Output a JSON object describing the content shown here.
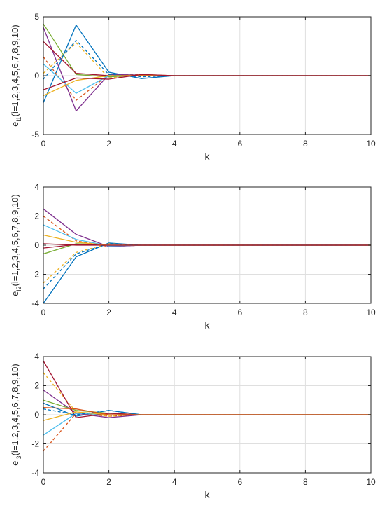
{
  "chart_data": [
    {
      "type": "line",
      "xlabel": "k",
      "ylabel": {
        "main": "e",
        "sub": "i1",
        "suffix": "(i=1,2,3,4,5,6,7,8,9,10)"
      },
      "xlim": [
        0,
        10
      ],
      "ylim": [
        -5,
        5
      ],
      "xticks": [
        0,
        2,
        4,
        6,
        8,
        10
      ],
      "yticks": [
        -5,
        0,
        5
      ],
      "grid": true,
      "x": [
        0,
        1,
        2,
        3,
        4,
        5,
        6,
        7,
        8,
        9,
        10
      ],
      "series": [
        {
          "color": "#0072BD",
          "dash": false,
          "values": [
            -2.3,
            4.3,
            0.3,
            -0.25,
            0,
            0,
            0,
            0,
            0,
            0,
            0
          ]
        },
        {
          "color": "#D95319",
          "dash": true,
          "values": [
            1.6,
            -2.1,
            0.1,
            0.1,
            0,
            0,
            0,
            0,
            0,
            0,
            0
          ]
        },
        {
          "color": "#EDB120",
          "dash": true,
          "values": [
            0.2,
            2.8,
            -0.2,
            0.1,
            0,
            0,
            0,
            0,
            0,
            0,
            0
          ]
        },
        {
          "color": "#7E2F8E",
          "dash": false,
          "values": [
            4.1,
            -3.0,
            0.1,
            0.05,
            0,
            0,
            0,
            0,
            0,
            0,
            0
          ]
        },
        {
          "color": "#77AC30",
          "dash": false,
          "values": [
            4.4,
            0.1,
            -0.1,
            0.05,
            0,
            0,
            0,
            0,
            0,
            0,
            0
          ]
        },
        {
          "color": "#4DBEEE",
          "dash": false,
          "values": [
            1.0,
            -1.5,
            0.0,
            0.05,
            0,
            0,
            0,
            0,
            0,
            0,
            0
          ]
        },
        {
          "color": "#A2142F",
          "dash": false,
          "values": [
            2.9,
            0.2,
            0.0,
            0.05,
            0,
            0,
            0,
            0,
            0,
            0,
            0
          ]
        },
        {
          "color": "#0072BD",
          "dash": true,
          "values": [
            -0.3,
            3.0,
            0.1,
            -0.1,
            0,
            0,
            0,
            0,
            0,
            0,
            0
          ]
        },
        {
          "color": "#EDB120",
          "dash": false,
          "values": [
            -1.7,
            -0.4,
            0.0,
            0.0,
            0,
            0,
            0,
            0,
            0,
            0,
            0
          ]
        },
        {
          "color": "#A2142F",
          "dash": false,
          "values": [
            -1.2,
            -0.2,
            -0.3,
            0.1,
            0,
            0,
            0,
            0,
            0,
            0,
            0
          ]
        }
      ]
    },
    {
      "type": "line",
      "xlabel": "k",
      "ylabel": {
        "main": "e",
        "sub": "i2",
        "suffix": "(i=1,2,3,4,5,6,7,8,9,10)"
      },
      "xlim": [
        0,
        10
      ],
      "ylim": [
        -4,
        4
      ],
      "xticks": [
        0,
        2,
        4,
        6,
        8,
        10
      ],
      "yticks": [
        -4,
        -2,
        0,
        2,
        4
      ],
      "grid": true,
      "x": [
        0,
        1,
        2,
        3,
        4,
        5,
        6,
        7,
        8,
        9,
        10
      ],
      "series": [
        {
          "color": "#0072BD",
          "dash": false,
          "values": [
            -4.0,
            -0.8,
            0.15,
            0.0,
            0,
            0,
            0,
            0,
            0,
            0,
            0
          ]
        },
        {
          "color": "#D95319",
          "dash": true,
          "values": [
            2.0,
            0.3,
            -0.1,
            0.0,
            0,
            0,
            0,
            0,
            0,
            0,
            0
          ]
        },
        {
          "color": "#EDB120",
          "dash": true,
          "values": [
            -2.6,
            -0.5,
            0.1,
            0.0,
            0,
            0,
            0,
            0,
            0,
            0,
            0
          ]
        },
        {
          "color": "#7E2F8E",
          "dash": false,
          "values": [
            2.5,
            0.75,
            -0.1,
            0.0,
            0,
            0,
            0,
            0,
            0,
            0,
            0
          ]
        },
        {
          "color": "#77AC30",
          "dash": false,
          "values": [
            -0.6,
            0.1,
            0.0,
            0.0,
            0,
            0,
            0,
            0,
            0,
            0,
            0
          ]
        },
        {
          "color": "#4DBEEE",
          "dash": false,
          "values": [
            1.4,
            0.4,
            -0.05,
            0.0,
            0,
            0,
            0,
            0,
            0,
            0,
            0
          ]
        },
        {
          "color": "#A2142F",
          "dash": false,
          "values": [
            -0.2,
            0.05,
            0.0,
            0.0,
            0,
            0,
            0,
            0,
            0,
            0,
            0
          ]
        },
        {
          "color": "#0072BD",
          "dash": true,
          "values": [
            -3.0,
            -0.6,
            0.1,
            0.0,
            0,
            0,
            0,
            0,
            0,
            0,
            0
          ]
        },
        {
          "color": "#EDB120",
          "dash": false,
          "values": [
            0.7,
            0.2,
            0.0,
            0.0,
            0,
            0,
            0,
            0,
            0,
            0,
            0
          ]
        },
        {
          "color": "#A2142F",
          "dash": false,
          "values": [
            0.1,
            0.0,
            0.0,
            0.0,
            0,
            0,
            0,
            0,
            0,
            0,
            0
          ]
        }
      ]
    },
    {
      "type": "line",
      "xlabel": "k",
      "ylabel": {
        "main": "e",
        "sub": "i3",
        "suffix": "(i=1,2,3,4,5,6,7,8,9,10)"
      },
      "xlim": [
        0,
        10
      ],
      "ylim": [
        -4,
        4
      ],
      "xticks": [
        0,
        2,
        4,
        6,
        8,
        10
      ],
      "yticks": [
        -4,
        -2,
        0,
        2,
        4
      ],
      "grid": true,
      "x": [
        0,
        1,
        2,
        3,
        4,
        5,
        6,
        7,
        8,
        9,
        10
      ],
      "series": [
        {
          "color": "#0072BD",
          "dash": false,
          "values": [
            0.8,
            -0.1,
            0.3,
            0.0,
            0,
            0,
            0,
            0,
            0,
            0,
            0
          ]
        },
        {
          "color": "#D95319",
          "dash": true,
          "values": [
            -2.5,
            0.1,
            -0.1,
            0.0,
            0,
            0,
            0,
            0,
            0,
            0,
            0
          ]
        },
        {
          "color": "#EDB120",
          "dash": true,
          "values": [
            2.9,
            0.2,
            -0.1,
            0.0,
            0,
            0,
            0,
            0,
            0,
            0,
            0
          ]
        },
        {
          "color": "#7E2F8E",
          "dash": false,
          "values": [
            1.7,
            0.1,
            -0.2,
            0.0,
            0,
            0,
            0,
            0,
            0,
            0,
            0
          ]
        },
        {
          "color": "#77AC30",
          "dash": false,
          "values": [
            1.0,
            0.3,
            0.1,
            0.0,
            0,
            0,
            0,
            0,
            0,
            0,
            0
          ]
        },
        {
          "color": "#4DBEEE",
          "dash": false,
          "values": [
            -1.4,
            0.1,
            0.0,
            0.0,
            0,
            0,
            0,
            0,
            0,
            0,
            0
          ]
        },
        {
          "color": "#A2142F",
          "dash": false,
          "values": [
            3.7,
            -0.2,
            0.1,
            0.0,
            0,
            0,
            0,
            0,
            0,
            0,
            0
          ]
        },
        {
          "color": "#0072BD",
          "dash": true,
          "values": [
            0.4,
            0.0,
            0.3,
            0.0,
            0,
            0,
            0,
            0,
            0,
            0,
            0
          ]
        },
        {
          "color": "#EDB120",
          "dash": false,
          "values": [
            -0.4,
            0.2,
            0.0,
            0.0,
            0,
            0,
            0,
            0,
            0,
            0,
            0
          ]
        },
        {
          "color": "#D95319",
          "dash": false,
          "values": [
            0.5,
            0.4,
            0.0,
            0.0,
            0,
            0,
            0,
            0,
            0,
            0,
            0
          ]
        }
      ]
    }
  ]
}
